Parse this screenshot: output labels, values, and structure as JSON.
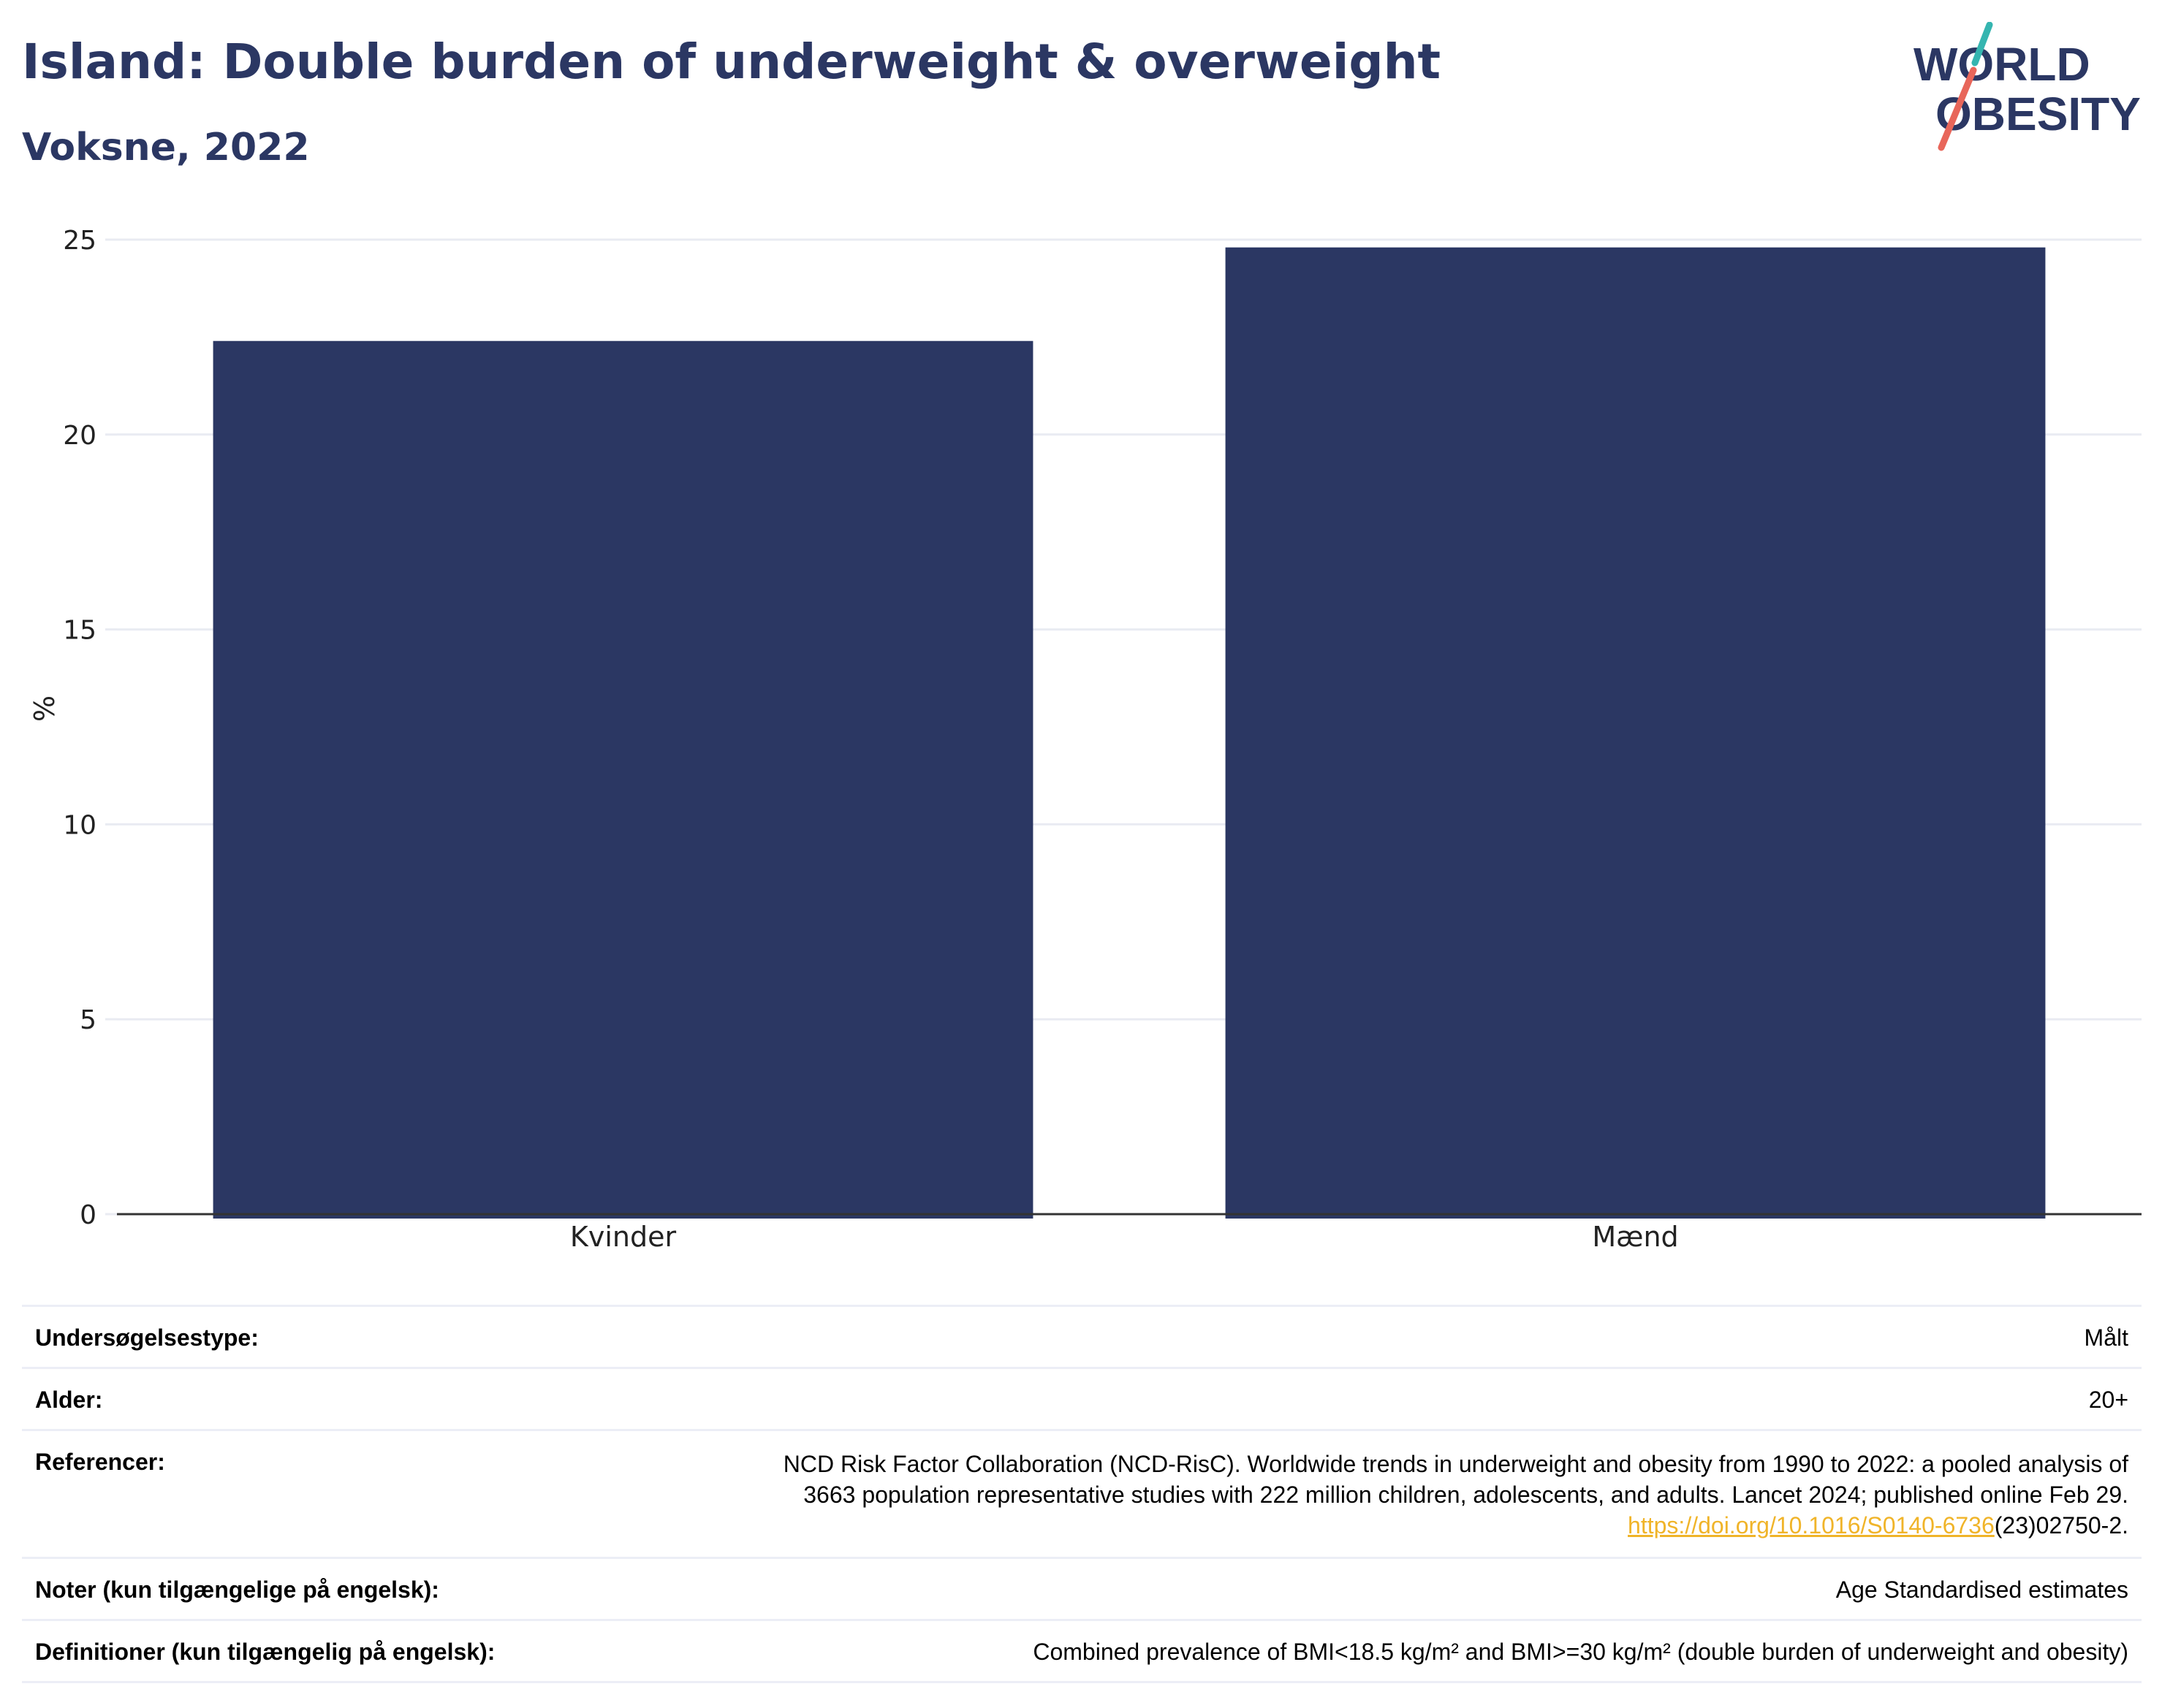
{
  "header": {
    "title": "Island: Double burden of underweight & overweight",
    "subtitle": "Voksne, 2022"
  },
  "logo": {
    "line1": "WORLD",
    "line2": "OBESITY",
    "accent_teal": "#35b5b0",
    "accent_red": "#e8665a"
  },
  "colors": {
    "bar": "#2b3763",
    "text_heading": "#2b3763",
    "gridline": "#e9ebf2",
    "axis": "#333333"
  },
  "chart_data": {
    "type": "bar",
    "categories": [
      "Kvinder",
      "Mænd"
    ],
    "values": [
      22.4,
      24.8
    ],
    "ylabel": "%",
    "xlabel": "",
    "ylim": [
      0,
      25
    ],
    "yticks": [
      0,
      5,
      10,
      15,
      20,
      25
    ],
    "grid": true
  },
  "info": {
    "survey_type": {
      "label": "Undersøgelsestype:",
      "value": "Målt"
    },
    "age": {
      "label": "Alder:",
      "value": "20+"
    },
    "references": {
      "label": "Referencer:",
      "text_line1": "NCD Risk Factor Collaboration (NCD-RisC). Worldwide trends in underweight and obesity from 1990 to 2022: a pooled analysis of",
      "text_line2": "3663 population representative studies with 222 million children, adolescents, and adults. Lancet 2024; published online Feb 29.",
      "link_text": "https://doi.org/10.1016/S0140-6736",
      "link_suffix": "(23)02750-2."
    },
    "notes": {
      "label": "Noter (kun tilgængelige på engelsk):",
      "value": "Age Standardised estimates"
    },
    "definitions": {
      "label": "Definitioner (kun tilgængelig på engelsk):",
      "value": "Combined prevalence of BMI<18.5 kg/m² and BMI>=30 kg/m² (double burden of underweight and obesity)"
    }
  }
}
